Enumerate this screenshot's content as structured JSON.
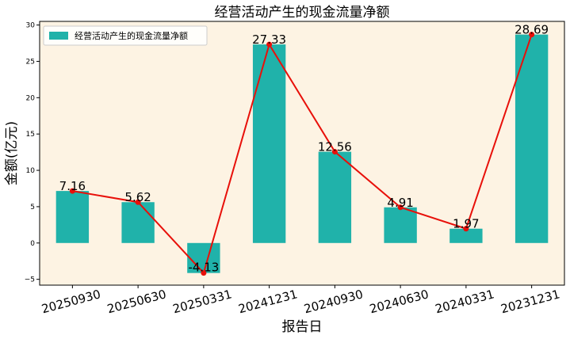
{
  "chart_data": {
    "type": "bar",
    "title": "经营活动产生的现金流量净额",
    "xlabel": "报告日",
    "ylabel": "金额(亿元)",
    "categories": [
      "20250930",
      "20250630",
      "20250331",
      "20241231",
      "20240930",
      "20240630",
      "20240331",
      "20231231"
    ],
    "series": [
      {
        "name": "经营活动产生的现金流量净额",
        "type": "bar",
        "values": [
          7.16,
          5.62,
          -4.13,
          27.33,
          12.56,
          4.91,
          1.97,
          28.69
        ],
        "labels": [
          "7.16",
          "5.62",
          "-4.13",
          "27.33",
          "12.56",
          "4.91",
          "1.97",
          "28.69"
        ]
      },
      {
        "type": "line",
        "values": [
          7.16,
          5.62,
          -4.13,
          27.33,
          12.56,
          4.91,
          1.97,
          28.69
        ]
      }
    ],
    "yticks": [
      -5,
      0,
      5,
      10,
      15,
      20,
      25,
      30
    ],
    "ytick_labels": [
      "−5",
      "0",
      "5",
      "10",
      "15",
      "20",
      "25",
      "30"
    ],
    "ylim": [
      -5.8,
      30.5
    ],
    "legend_position": "upper-left",
    "grid": false,
    "colors": {
      "bar": "#20b2aa",
      "line": "#e8100a",
      "plot_background": "#fdf3e3",
      "figure_background": "#ffffff"
    }
  }
}
